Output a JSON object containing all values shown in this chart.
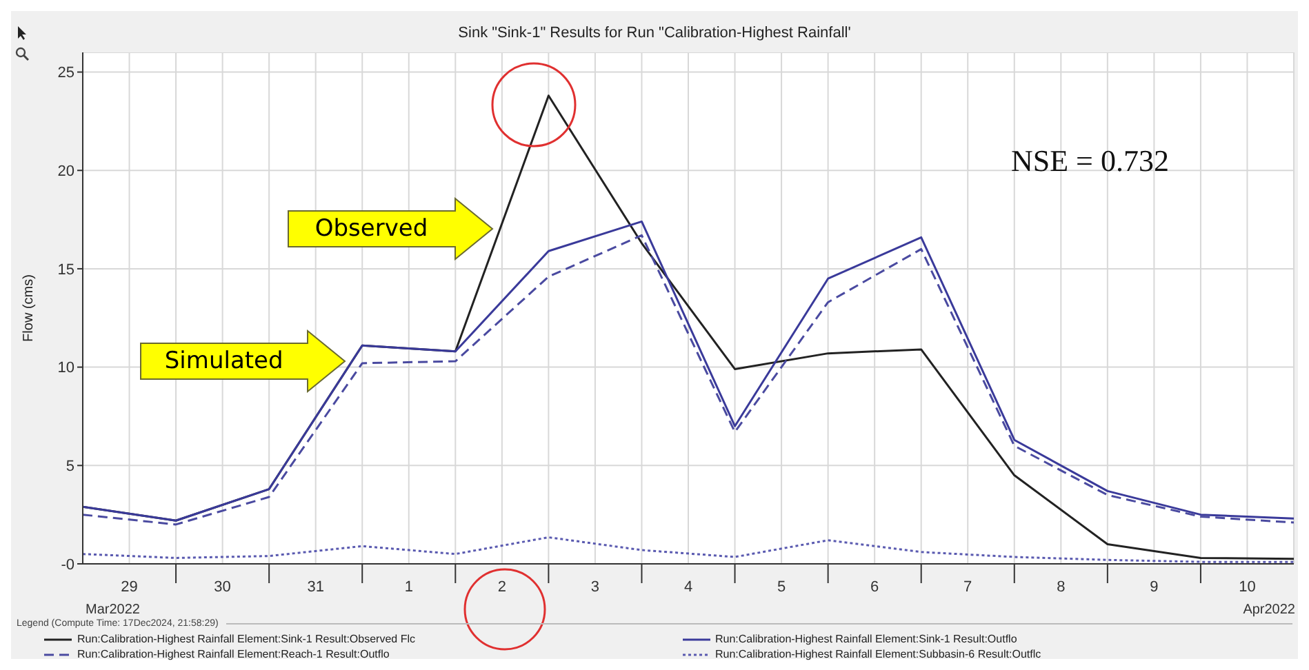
{
  "chart_data": {
    "type": "line",
    "title": "Sink \"Sink-1\" Results for Run \"Calibration-Highest Rainfall'",
    "ylabel": "Flow (cms)",
    "legend_title": "Legend (Compute Time: 17Dec2024, 21:58:29)",
    "annotations": [
      {
        "text": "Observed",
        "x": "2022-04-02T10:00",
        "y": 17
      },
      {
        "text": "Simulated",
        "x": "2022-03-31T20:00",
        "y": 10.3
      },
      "NSE = 0.732",
      "Mar2022",
      "Apr2022"
    ],
    "x": [
      "2022-03-29",
      "2022-03-30",
      "2022-03-31",
      "2022-04-01",
      "2022-04-02",
      "2022-04-03",
      "2022-04-04",
      "2022-04-05",
      "2022-04-06",
      "2022-04-07",
      "2022-04-08",
      "2022-04-09",
      "2022-04-10",
      "2022-04-11"
    ],
    "xlim": [
      "2022-03-29",
      "2022-04-11"
    ],
    "xticks": [
      {
        "value": "2022-03-29T12:00",
        "label": "29"
      },
      {
        "value": "2022-03-30",
        "label": null
      },
      {
        "value": "2022-03-30T12:00",
        "label": "30"
      },
      {
        "value": "2022-03-31",
        "label": null
      },
      {
        "value": "2022-03-31T12:00",
        "label": "31"
      },
      {
        "value": "2022-04-01",
        "label": null
      },
      {
        "value": "2022-04-01T12:00",
        "label": "1"
      },
      {
        "value": "2022-04-02",
        "label": null
      },
      {
        "value": "2022-04-02T12:00",
        "label": "2"
      },
      {
        "value": "2022-04-03",
        "label": null
      },
      {
        "value": "2022-04-03T12:00",
        "label": "3"
      },
      {
        "value": "2022-04-04",
        "label": null
      },
      {
        "value": "2022-04-04T12:00",
        "label": "4"
      },
      {
        "value": "2022-04-05",
        "label": null
      },
      {
        "value": "2022-04-05T12:00",
        "label": "5"
      },
      {
        "value": "2022-04-06",
        "label": null
      },
      {
        "value": "2022-04-06T12:00",
        "label": "6"
      },
      {
        "value": "2022-04-07",
        "label": null
      },
      {
        "value": "2022-04-07T12:00",
        "label": "7"
      },
      {
        "value": "2022-04-08",
        "label": null
      },
      {
        "value": "2022-04-08T12:00",
        "label": "8"
      },
      {
        "value": "2022-04-09",
        "label": null
      },
      {
        "value": "2022-04-09T12:00",
        "label": "9"
      },
      {
        "value": "2022-04-10",
        "label": null
      },
      {
        "value": "2022-04-10T12:00",
        "label": "10"
      }
    ],
    "ylim": [
      0,
      26
    ],
    "yticks": [
      {
        "value": 0,
        "label": "-0"
      },
      5,
      10,
      15,
      20,
      25
    ],
    "grid": true,
    "legend": "bottom",
    "marker": "none",
    "series": [
      {
        "name": "Run:Calibration-Highest Rainfall Element:Sink-1 Result:Observed Flc",
        "color": "#222222",
        "line_style": "solid",
        "values": [
          2.9,
          2.2,
          3.8,
          11.1,
          10.8,
          23.8,
          16.3,
          9.9,
          10.7,
          10.9,
          4.5,
          1.0,
          0.3,
          0.25
        ]
      },
      {
        "name": "Run:Calibration-Highest Rainfall Element:Sink-1 Result:Outflo",
        "color": "#3a3a9a",
        "line_style": "solid",
        "values": [
          2.9,
          2.2,
          3.8,
          11.1,
          10.8,
          15.9,
          17.4,
          7.0,
          14.5,
          16.6,
          6.3,
          3.7,
          2.5,
          2.3
        ]
      },
      {
        "name": "Run:Calibration-Highest Rainfall Element:Reach-1 Result:Outflo",
        "color": "#4a4aa0",
        "line_style": "dashed",
        "values": [
          2.5,
          2.0,
          3.4,
          10.2,
          10.3,
          14.6,
          16.7,
          6.7,
          13.3,
          16.0,
          6.0,
          3.5,
          2.4,
          2.1
        ]
      },
      {
        "name": "Run:Calibration-Highest Rainfall Element:Subbasin-6 Result:Outflc",
        "color": "#5a5ab0",
        "line_style": "dotted",
        "values": [
          0.5,
          0.3,
          0.4,
          0.9,
          0.5,
          1.35,
          0.7,
          0.35,
          1.2,
          0.6,
          0.35,
          0.2,
          0.1,
          0.1
        ]
      }
    ]
  }
}
